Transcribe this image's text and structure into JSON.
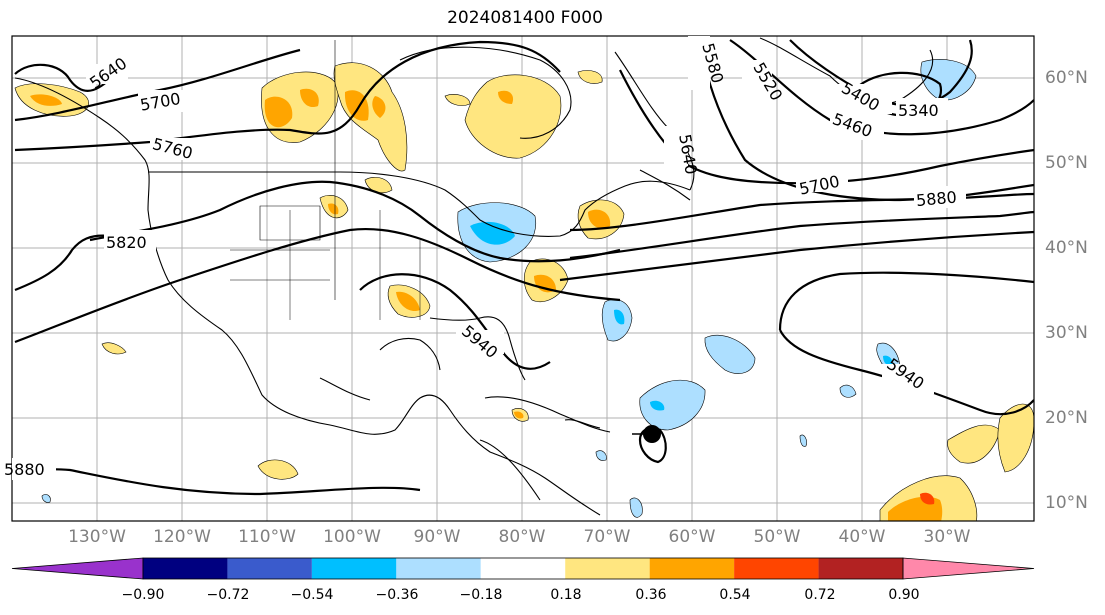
{
  "title": "2024081400 F000",
  "longitude_labels": [
    "130°W",
    "120°W",
    "110°W",
    "100°W",
    "90°W",
    "80°W",
    "70°W",
    "60°W",
    "50°W",
    "40°W",
    "30°W"
  ],
  "latitude_labels": [
    "60°N",
    "50°N",
    "40°N",
    "30°N",
    "20°N",
    "10°N"
  ],
  "contour_labels": [
    "5640",
    "5700",
    "5760",
    "5820",
    "5880",
    "5940",
    "5580",
    "5520",
    "5400",
    "5460",
    "5340",
    "5640",
    "5700",
    "5880",
    "5940"
  ],
  "colorbar": {
    "ticks": [
      "−0.90",
      "−0.72",
      "−0.54",
      "−0.36",
      "−0.18",
      "0.18",
      "0.36",
      "0.54",
      "0.72",
      "0.90"
    ],
    "colors": [
      "#9932CC",
      "#000080",
      "#3A5BCC",
      "#00BFFF",
      "#ADDFFF",
      "#FFFFFF",
      "#FFE680",
      "#FFA500",
      "#FF4500",
      "#B22222",
      "#FF88AA"
    ]
  },
  "storm_marker": "hurricane-symbol"
}
